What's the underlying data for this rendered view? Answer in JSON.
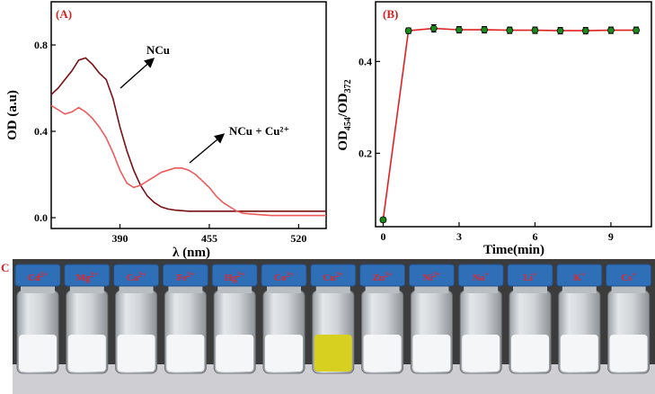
{
  "figure": {
    "panel_a_label": "(A)",
    "panel_b_label": "(B)",
    "panel_c_label": "C"
  },
  "chart_data": [
    {
      "type": "line",
      "xlabel": "λ (nm)",
      "ylabel": "OD (a.u)",
      "xlim": [
        340,
        540
      ],
      "ylim": [
        -0.05,
        1.0
      ],
      "x_ticks": [
        "390",
        "455",
        "520"
      ],
      "x_tick_values": [
        390,
        455,
        520
      ],
      "y_ticks": [
        "0.0",
        "0.4",
        "0.8"
      ],
      "y_tick_values": [
        0.0,
        0.4,
        0.8
      ],
      "annotations": [
        {
          "text": "NCu",
          "series": 0
        },
        {
          "text": "NCu + Cu²⁺",
          "series": 1
        }
      ],
      "series": [
        {
          "color": "#7a0f14",
          "x": [
            340,
            345,
            350,
            355,
            360,
            365,
            370,
            375,
            380,
            385,
            390,
            395,
            400,
            405,
            410,
            415,
            420,
            425,
            430,
            440,
            460,
            480,
            500,
            520,
            540
          ],
          "y": [
            0.57,
            0.6,
            0.64,
            0.68,
            0.73,
            0.74,
            0.71,
            0.67,
            0.64,
            0.55,
            0.42,
            0.31,
            0.22,
            0.15,
            0.1,
            0.07,
            0.05,
            0.04,
            0.035,
            0.03,
            0.03,
            0.03,
            0.03,
            0.03,
            0.03
          ]
        },
        {
          "color": "#ee5a5a",
          "x": [
            340,
            345,
            350,
            355,
            360,
            365,
            370,
            375,
            380,
            385,
            390,
            395,
            400,
            405,
            410,
            415,
            420,
            425,
            430,
            435,
            440,
            445,
            450,
            455,
            460,
            465,
            470,
            475,
            480,
            490,
            500,
            510,
            520,
            540
          ],
          "y": [
            0.52,
            0.5,
            0.48,
            0.49,
            0.51,
            0.49,
            0.46,
            0.42,
            0.37,
            0.3,
            0.22,
            0.16,
            0.14,
            0.15,
            0.17,
            0.19,
            0.21,
            0.22,
            0.23,
            0.23,
            0.22,
            0.2,
            0.17,
            0.14,
            0.1,
            0.07,
            0.05,
            0.03,
            0.02,
            0.015,
            0.01,
            0.01,
            0.01,
            0.01
          ]
        }
      ]
    },
    {
      "type": "line",
      "xlabel": "Time(min)",
      "ylabel": "OD454/OD372",
      "ylabel_parts": [
        "OD",
        "454",
        "/OD",
        "372"
      ],
      "xlim": [
        -0.3,
        10.6
      ],
      "ylim": [
        0.04,
        0.53
      ],
      "x_ticks": [
        "0",
        "3",
        "6",
        "9"
      ],
      "x_tick_values": [
        0,
        3,
        6,
        9
      ],
      "y_ticks": [
        "0.2",
        "0.4"
      ],
      "y_tick_values": [
        0.2,
        0.4
      ],
      "series": [
        {
          "color": "#e02020",
          "marker": "circle",
          "marker_color": "#1a8a1a",
          "x": [
            0,
            1,
            2,
            3,
            4,
            5,
            6,
            7,
            8,
            9,
            10
          ],
          "y": [
            0.055,
            0.467,
            0.472,
            0.469,
            0.469,
            0.468,
            0.468,
            0.467,
            0.467,
            0.468,
            0.468
          ],
          "error": [
            0.005,
            0.006,
            0.008,
            0.007,
            0.007,
            0.007,
            0.007,
            0.007,
            0.007,
            0.007,
            0.007
          ]
        }
      ]
    }
  ],
  "vials": {
    "labels": [
      {
        "base": "Cd",
        "sup": "2+"
      },
      {
        "base": "Mg",
        "sup": "2+"
      },
      {
        "base": "Ca",
        "sup": "2+"
      },
      {
        "base": "Fe",
        "sup": "2+"
      },
      {
        "base": "Hg",
        "sup": "2+"
      },
      {
        "base": "Co",
        "sup": "2+"
      },
      {
        "base": "Cu",
        "sup": "2+"
      },
      {
        "base": "Zn",
        "sup": "2+"
      },
      {
        "base": "Ni",
        "sup": "2+"
      },
      {
        "base": "Na",
        "sup": "+"
      },
      {
        "base": "Li",
        "sup": "+"
      },
      {
        "base": "K",
        "sup": "+"
      },
      {
        "base": "Cs",
        "sup": "+"
      }
    ],
    "cap_color": "#2f6fb8",
    "liquid_colors": [
      "#f4f6f8",
      "#f4f6f8",
      "#f4f6f8",
      "#f4f6f8",
      "#f4f6f8",
      "#f4f6f8",
      "#d8d020",
      "#f4f6f8",
      "#f4f6f8",
      "#f4f6f8",
      "#f4f6f8",
      "#f4f6f8",
      "#f4f6f8"
    ]
  }
}
